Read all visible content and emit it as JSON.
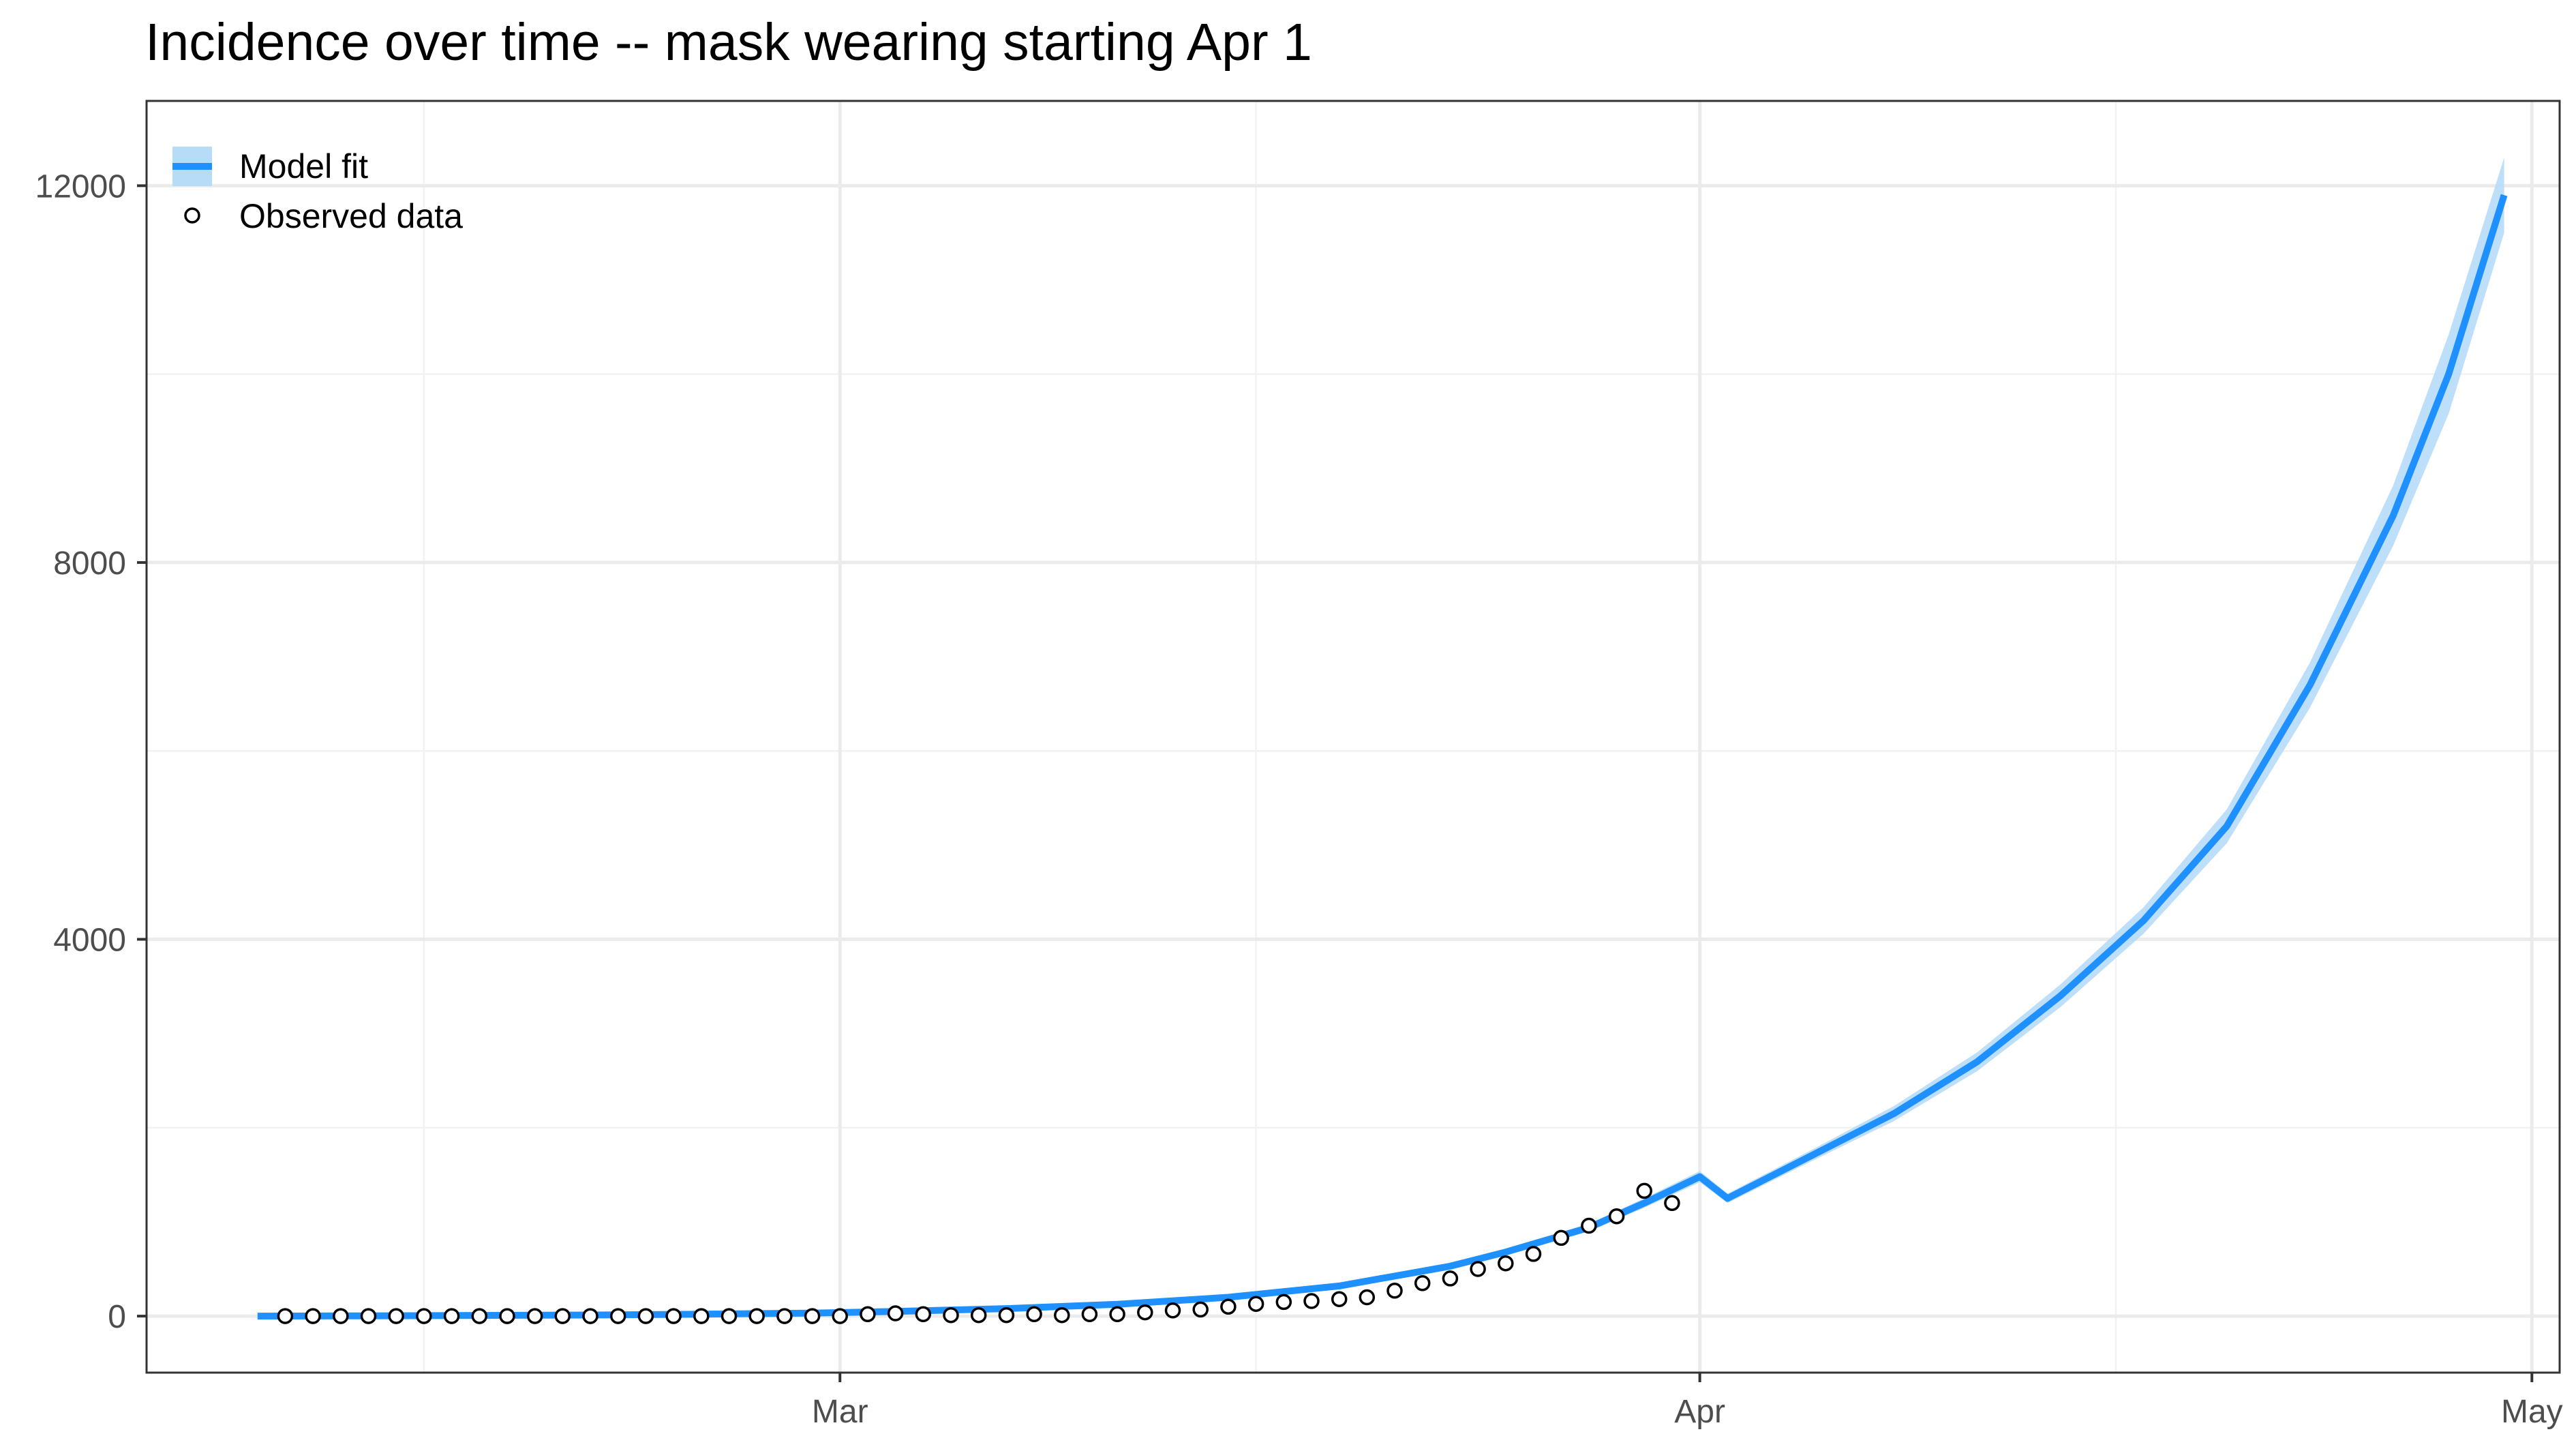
{
  "chart_data": {
    "type": "line",
    "title": "Incidence over time -- mask wearing starting Apr 1",
    "xlabel": "",
    "ylabel": "",
    "x_axis": {
      "type": "date",
      "range": [
        "2020-02-05",
        "2020-05-02"
      ],
      "ticks": [
        {
          "value": "2020-03-01",
          "label": "Mar"
        },
        {
          "value": "2020-04-01",
          "label": "Apr"
        },
        {
          "value": "2020-05-01",
          "label": "May"
        }
      ],
      "minor_ticks": [
        "2020-02-15",
        "2020-03-16",
        "2020-04-16"
      ]
    },
    "y_axis": {
      "range": [
        -600,
        12900
      ],
      "ticks": [
        0,
        4000,
        8000,
        12000
      ],
      "minor_ticks": [
        2000,
        6000,
        10000
      ]
    },
    "grid": true,
    "legend": {
      "placement": "top-left",
      "entries": [
        {
          "label": "Model fit",
          "kind": "line-with-ribbon"
        },
        {
          "label": "Observed data",
          "kind": "open-circle"
        }
      ]
    },
    "colors": {
      "line": "#1e90ff",
      "ribbon": "#b7dcf8",
      "points": "#000000"
    },
    "series": [
      {
        "name": "Model fit",
        "type": "line",
        "x": [
          "2020-02-09",
          "2020-02-13",
          "2020-02-17",
          "2020-02-21",
          "2020-02-25",
          "2020-02-29",
          "2020-03-03",
          "2020-03-07",
          "2020-03-11",
          "2020-03-15",
          "2020-03-19",
          "2020-03-23",
          "2020-03-25",
          "2020-03-28",
          "2020-03-30",
          "2020-04-01",
          "2020-04-02",
          "2020-04-05",
          "2020-04-08",
          "2020-04-11",
          "2020-04-14",
          "2020-04-17",
          "2020-04-20",
          "2020-04-23",
          "2020-04-26",
          "2020-04-28",
          "2020-04-30"
        ],
        "y": [
          0,
          3,
          7,
          12,
          20,
          32,
          50,
          80,
          125,
          200,
          320,
          530,
          680,
          940,
          1200,
          1480,
          1250,
          1700,
          2150,
          2700,
          3400,
          4200,
          5200,
          6700,
          8500,
          10000,
          11900
        ],
        "lower": [
          0,
          2,
          5,
          10,
          18,
          29,
          45,
          74,
          116,
          188,
          303,
          505,
          650,
          900,
          1150,
          1420,
          1200,
          1640,
          2070,
          2600,
          3280,
          4060,
          5020,
          6460,
          8180,
          9580,
          11500
        ],
        "upper": [
          0,
          4,
          9,
          14,
          22,
          35,
          55,
          86,
          134,
          212,
          337,
          555,
          710,
          980,
          1250,
          1540,
          1300,
          1760,
          2230,
          2800,
          3520,
          4340,
          5380,
          6940,
          8820,
          10420,
          12300
        ]
      },
      {
        "name": "Observed data",
        "type": "scatter",
        "x": [
          "2020-02-10",
          "2020-02-11",
          "2020-02-12",
          "2020-02-13",
          "2020-02-14",
          "2020-02-15",
          "2020-02-16",
          "2020-02-17",
          "2020-02-18",
          "2020-02-19",
          "2020-02-20",
          "2020-02-21",
          "2020-02-22",
          "2020-02-23",
          "2020-02-24",
          "2020-02-25",
          "2020-02-26",
          "2020-02-27",
          "2020-02-28",
          "2020-02-29",
          "2020-03-01",
          "2020-03-02",
          "2020-03-03",
          "2020-03-04",
          "2020-03-05",
          "2020-03-06",
          "2020-03-07",
          "2020-03-08",
          "2020-03-09",
          "2020-03-10",
          "2020-03-11",
          "2020-03-12",
          "2020-03-13",
          "2020-03-14",
          "2020-03-15",
          "2020-03-16",
          "2020-03-17",
          "2020-03-18",
          "2020-03-19",
          "2020-03-20",
          "2020-03-21",
          "2020-03-22",
          "2020-03-23",
          "2020-03-24",
          "2020-03-25",
          "2020-03-26",
          "2020-03-27",
          "2020-03-28",
          "2020-03-29",
          "2020-03-30",
          "2020-03-31"
        ],
        "y": [
          0,
          0,
          0,
          0,
          0,
          0,
          0,
          0,
          0,
          0,
          0,
          0,
          0,
          0,
          0,
          0,
          0,
          0,
          0,
          0,
          0,
          20,
          30,
          20,
          10,
          10,
          10,
          20,
          10,
          20,
          20,
          40,
          60,
          70,
          100,
          130,
          150,
          160,
          180,
          200,
          270,
          350,
          400,
          500,
          560,
          660,
          830,
          960,
          1060,
          1330,
          1200
        ]
      }
    ]
  }
}
